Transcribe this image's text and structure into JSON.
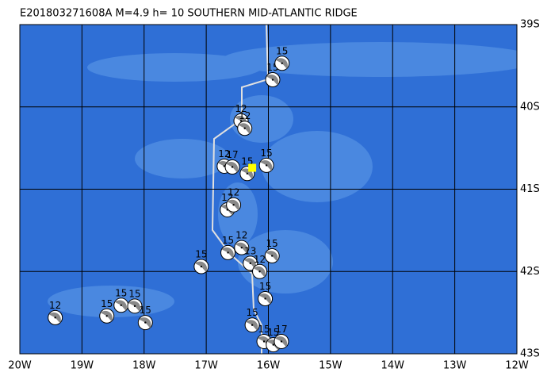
{
  "chart_data": {
    "type": "map",
    "title": "E201803271608A M=4.9 h= 10 SOUTHERN MID-ATLANTIC RIDGE",
    "xlim": [
      -20,
      -12
    ],
    "ylim": [
      -43,
      -39
    ],
    "xticks": [
      {
        "value": -20,
        "label": "20W"
      },
      {
        "value": -19,
        "label": "19W"
      },
      {
        "value": -18,
        "label": "18W"
      },
      {
        "value": -17,
        "label": "17W"
      },
      {
        "value": -16,
        "label": "16W"
      },
      {
        "value": -15,
        "label": "15W"
      },
      {
        "value": -14,
        "label": "14W"
      },
      {
        "value": -13,
        "label": "13W"
      },
      {
        "value": -12,
        "label": "12W"
      }
    ],
    "yticks": [
      {
        "value": -39,
        "label": "39S"
      },
      {
        "value": -40,
        "label": "40S"
      },
      {
        "value": -41,
        "label": "41S"
      },
      {
        "value": -42,
        "label": "42S"
      },
      {
        "value": -43,
        "label": "43S"
      }
    ],
    "epicenter": {
      "lon": -16.26,
      "lat": -40.74,
      "color": "#ffff00"
    },
    "events": [
      {
        "lon": -19.43,
        "lat": -42.56,
        "depth": 12
      },
      {
        "lon": -18.6,
        "lat": -42.54,
        "depth": 15
      },
      {
        "lon": -18.37,
        "lat": -42.41,
        "depth": 15
      },
      {
        "lon": -18.15,
        "lat": -42.42,
        "depth": 15
      },
      {
        "lon": -17.98,
        "lat": -42.62,
        "depth": 15
      },
      {
        "lon": -17.08,
        "lat": -41.94,
        "depth": 15
      },
      {
        "lon": -16.65,
        "lat": -41.77,
        "depth": 15
      },
      {
        "lon": -16.43,
        "lat": -41.71,
        "depth": 12
      },
      {
        "lon": -16.29,
        "lat": -41.9,
        "depth": 13
      },
      {
        "lon": -16.14,
        "lat": -42.0,
        "depth": 12
      },
      {
        "lon": -15.94,
        "lat": -41.81,
        "depth": 15
      },
      {
        "lon": -16.05,
        "lat": -42.33,
        "depth": 15
      },
      {
        "lon": -16.66,
        "lat": -41.25,
        "depth": 12
      },
      {
        "lon": -16.56,
        "lat": -41.19,
        "depth": 12
      },
      {
        "lon": -16.71,
        "lat": -40.72,
        "depth": 12
      },
      {
        "lon": -16.58,
        "lat": -40.73,
        "depth": 17
      },
      {
        "lon": -16.34,
        "lat": -40.81,
        "depth": 15
      },
      {
        "lon": -16.03,
        "lat": -40.71,
        "depth": 15
      },
      {
        "lon": -16.44,
        "lat": -40.17,
        "depth": 12
      },
      {
        "lon": -16.38,
        "lat": -40.26,
        "depth": 12
      },
      {
        "lon": -15.93,
        "lat": -39.67,
        "depth": 15
      },
      {
        "lon": -15.78,
        "lat": -39.47,
        "depth": 15
      },
      {
        "lon": -16.26,
        "lat": -42.65,
        "depth": 15
      },
      {
        "lon": -16.07,
        "lat": -42.85,
        "depth": 15
      },
      {
        "lon": -15.92,
        "lat": -42.89,
        "depth": 15
      },
      {
        "lon": -15.79,
        "lat": -42.85,
        "depth": 17
      }
    ]
  }
}
